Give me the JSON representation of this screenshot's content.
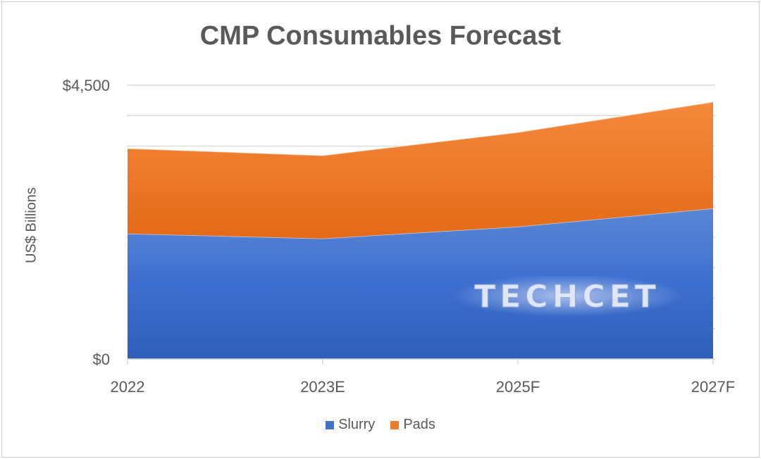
{
  "chart_data": {
    "type": "area",
    "stacked": true,
    "title": "CMP Consumables Forecast",
    "ylabel": "US$ Billions",
    "xlabel": "",
    "categories": [
      "2022",
      "2023E",
      "2025F",
      "2027F"
    ],
    "series": [
      {
        "name": "Slurry",
        "values": [
          2060,
          1980,
          2175,
          2475
        ],
        "color": "#4472C4"
      },
      {
        "name": "Pads",
        "values": [
          1400,
          1365,
          1550,
          1750
        ],
        "color": "#ED7D31"
      }
    ],
    "ylim": [
      0,
      4500
    ],
    "ygrid_step": 500,
    "yticks_labeled": [
      "$0",
      "$4,500"
    ],
    "grid": true,
    "legend": "bottom",
    "watermark": "TECHCET"
  }
}
